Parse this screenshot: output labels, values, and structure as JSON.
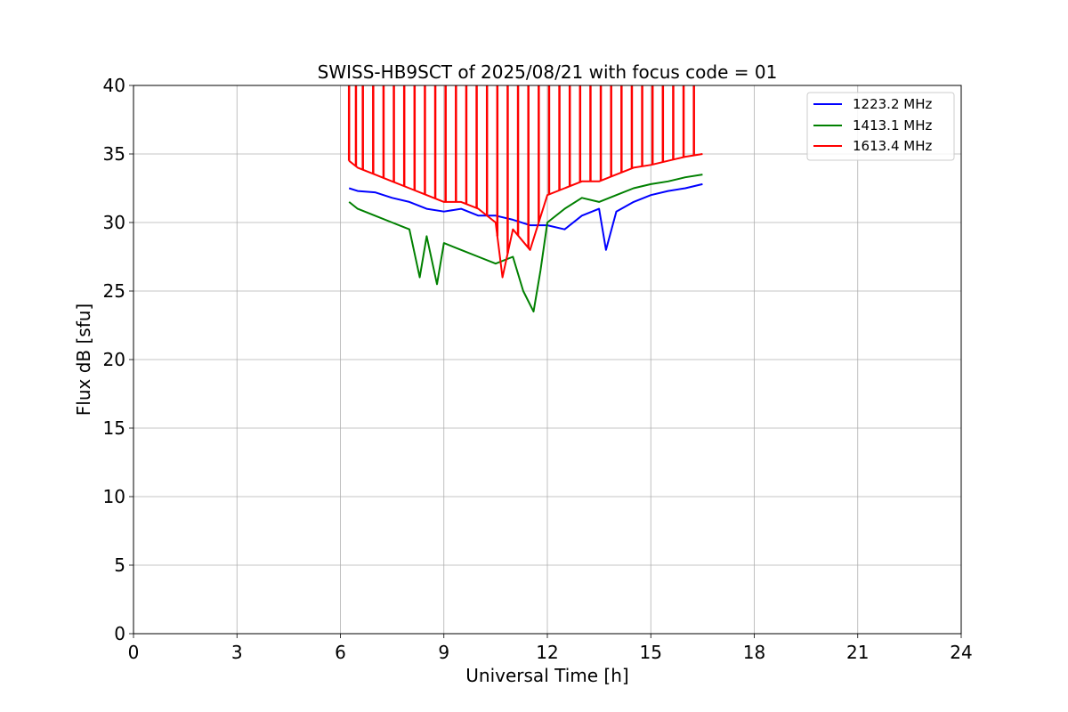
{
  "chart_data": {
    "type": "line",
    "title": "SWISS-HB9SCT of 2025/08/21 with focus code = 01",
    "xlabel": "Universal Time [h]",
    "ylabel": "Flux dB [sfu]",
    "xlim": [
      0,
      24
    ],
    "ylim": [
      0,
      40
    ],
    "xticks": [
      "0",
      "3",
      "6",
      "9",
      "12",
      "15",
      "18",
      "21",
      "24"
    ],
    "yticks": [
      "0",
      "5",
      "10",
      "15",
      "20",
      "25",
      "30",
      "35",
      "40"
    ],
    "grid": true,
    "legend_position": "top-right",
    "series": [
      {
        "name": "1223.2 MHz",
        "color": "#0000ff",
        "x": [
          6.25,
          6.5,
          7.0,
          7.5,
          8.0,
          8.5,
          9.0,
          9.5,
          10.0,
          10.5,
          11.0,
          11.5,
          12.0,
          12.5,
          13.0,
          13.5,
          13.7,
          14.0,
          14.5,
          15.0,
          15.5,
          16.0,
          16.5
        ],
        "y": [
          32.5,
          32.3,
          32.2,
          31.8,
          31.5,
          31.0,
          30.8,
          31.0,
          30.5,
          30.5,
          30.2,
          29.8,
          29.8,
          29.5,
          30.5,
          31.0,
          28.0,
          30.8,
          31.5,
          32.0,
          32.3,
          32.5,
          32.8
        ]
      },
      {
        "name": "1413.1 MHz",
        "color": "#008000",
        "x": [
          6.25,
          6.5,
          7.0,
          7.5,
          8.0,
          8.3,
          8.5,
          8.8,
          9.0,
          9.5,
          10.0,
          10.5,
          11.0,
          11.3,
          11.6,
          11.8,
          12.0,
          12.5,
          13.0,
          13.5,
          14.0,
          14.5,
          15.0,
          15.5,
          16.0,
          16.5
        ],
        "y": [
          31.5,
          31.0,
          30.5,
          30.0,
          29.5,
          26.0,
          29.0,
          25.5,
          28.5,
          28.0,
          27.5,
          27.0,
          27.5,
          25.0,
          23.5,
          26.5,
          30.0,
          31.0,
          31.8,
          31.5,
          32.0,
          32.5,
          32.8,
          33.0,
          33.3,
          33.5
        ]
      },
      {
        "name": "1613.4 MHz",
        "color": "#ff0000",
        "x": [
          6.25,
          6.5,
          7.0,
          7.5,
          8.0,
          8.5,
          9.0,
          9.5,
          10.0,
          10.5,
          10.7,
          11.0,
          11.5,
          12.0,
          12.5,
          13.0,
          13.5,
          14.0,
          14.5,
          15.0,
          15.5,
          16.0,
          16.5
        ],
        "y": [
          34.5,
          34.0,
          33.5,
          33.0,
          32.5,
          32.0,
          31.5,
          31.5,
          31.0,
          30.0,
          26.0,
          29.5,
          28.0,
          32.0,
          32.5,
          33.0,
          33.0,
          33.5,
          34.0,
          34.2,
          34.5,
          34.8,
          35.0
        ]
      }
    ],
    "spike_series": "1613.4 MHz",
    "spike_times": [
      6.25,
      6.45,
      6.65,
      6.95,
      7.25,
      7.55,
      7.85,
      8.15,
      8.45,
      8.75,
      9.05,
      9.35,
      9.65,
      9.95,
      10.25,
      10.55,
      10.85,
      11.15,
      11.45,
      11.75,
      12.05,
      12.35,
      12.65,
      12.95,
      13.25,
      13.55,
      13.85,
      14.15,
      14.45,
      14.75,
      15.05,
      15.35,
      15.65,
      15.95,
      16.25
    ],
    "spike_top": 40
  }
}
